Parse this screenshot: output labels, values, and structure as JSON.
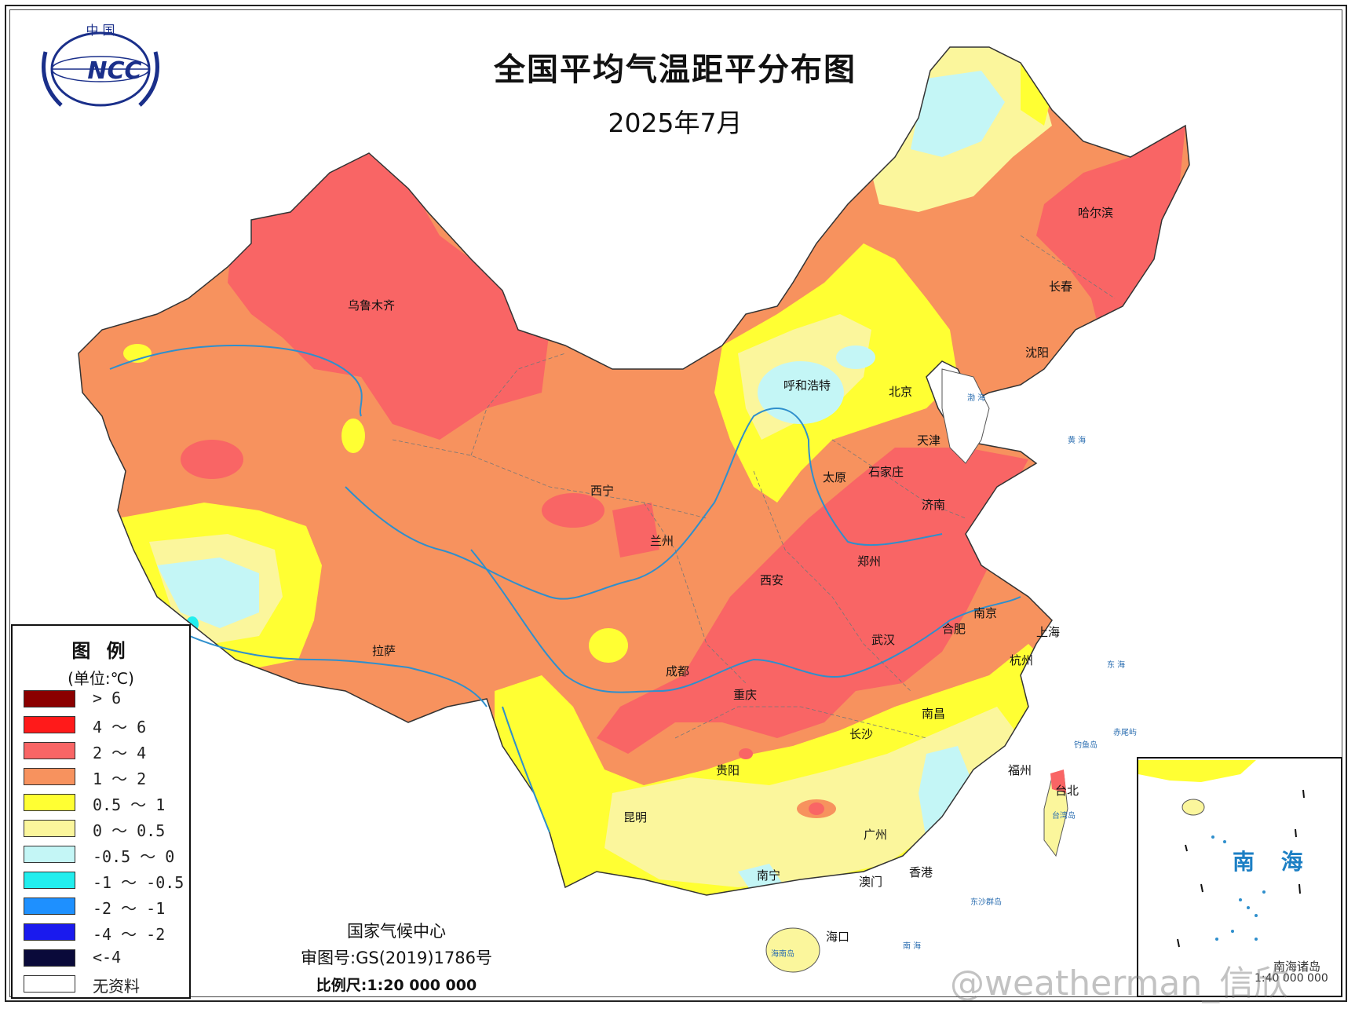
{
  "title": "全国平均气温距平分布图",
  "subtitle": "2025年7月",
  "logo": {
    "arc_text": "中 国",
    "text": "NCC"
  },
  "colors": {
    "gt6": "#8b0000",
    "c4_6": "#ff1a1a",
    "c2_4": "#f96565",
    "c1_2": "#f7925e",
    "c05_1": "#ffff33",
    "c0_05": "#fbf69c",
    "cm05_0": "#c4f6f6",
    "cm1_m05": "#22eeee",
    "cm2_m1": "#1e90ff",
    "cm4_m2": "#1a1aee",
    "lt_m4": "#0a0a3a",
    "nodata": "#ffffff",
    "river": "#2f8fcc",
    "sea_label": "#1c7fc4"
  },
  "legend": {
    "title": "图 例",
    "unit": "(单位:℃)",
    "items": [
      {
        "label": "> 6",
        "color": "#8b0000"
      },
      {
        "label": "4 ～ 6",
        "color": "#ff1a1a"
      },
      {
        "label": "2 ～ 4",
        "color": "#f96565"
      },
      {
        "label": "1 ～ 2",
        "color": "#f7925e"
      },
      {
        "label": "0.5 ～ 1",
        "color": "#ffff33"
      },
      {
        "label": "0 ～ 0.5",
        "color": "#fbf69c"
      },
      {
        "label": "-0.5 ～ 0",
        "color": "#c4f6f6"
      },
      {
        "label": "-1 ～ -0.5",
        "color": "#22eeee"
      },
      {
        "label": "-2 ～ -1",
        "color": "#1e90ff"
      },
      {
        "label": "-4 ～ -2",
        "color": "#1a1aee"
      },
      {
        "label": "<-4",
        "color": "#0a0a3a"
      },
      {
        "label": "无资料",
        "color": "#ffffff"
      }
    ]
  },
  "footer": {
    "org": "国家气候中心",
    "approval": "审图号:GS(2019)1786号",
    "scale": "比例尺:1:20 000 000"
  },
  "cities": {
    "urumqi": "乌鲁木齐",
    "hohhot": "呼和浩特",
    "beijing": "北京",
    "tianjin": "天津",
    "harbin": "哈尔滨",
    "changchun": "长春",
    "shenyang": "沈阳",
    "taiyuan": "太原",
    "shijiazhuang": "石家庄",
    "jinan": "济南",
    "xining": "西宁",
    "lanzhou": "兰州",
    "zhengzhou": "郑州",
    "xian": "西安",
    "nanjing": "南京",
    "hefei": "合肥",
    "shanghai": "上海",
    "wuhan": "武汉",
    "hangzhou": "杭州",
    "lhasa": "拉萨",
    "chengdu": "成都",
    "chongqing": "重庆",
    "changsha": "长沙",
    "nanchang": "南昌",
    "guiyang": "贵阳",
    "fuzhou": "福州",
    "taipei": "台北",
    "kunming": "昆明",
    "guangzhou": "广州",
    "nanning": "南宁",
    "hongkong": "香港",
    "macau": "澳门",
    "haikou": "海口"
  },
  "small_labels": {
    "taiwan_island": "台湾岛",
    "hainan_island": "海南岛",
    "dongsha": "东沙群岛",
    "diaoyu": "钓鱼岛",
    "chiwei": "赤尾屿"
  },
  "seas": {
    "bohai": "渤 海",
    "yellow_sea": "黄 海",
    "east_sea": "东 海",
    "south_sea": "南 海"
  },
  "inset": {
    "label": "南 海",
    "caption": "南海诸岛",
    "scale": "1:40 000 000"
  },
  "watermark": "@weatherman_信欣"
}
